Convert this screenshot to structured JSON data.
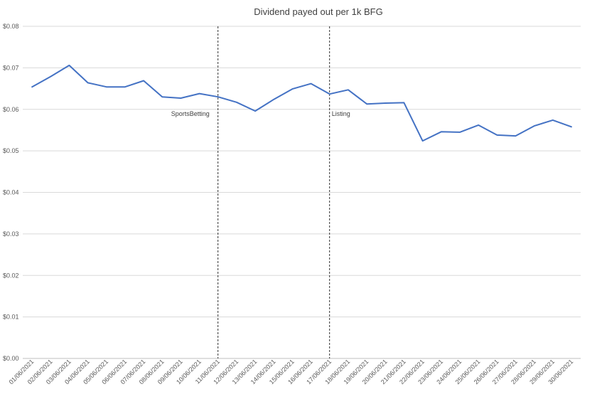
{
  "chart_data": {
    "type": "line",
    "title": "Dividend payed out per 1k BFG",
    "xlabel": "",
    "ylabel": "",
    "categories": [
      "01/06/2021",
      "02/06/2021",
      "03/06/2021",
      "04/06/2021",
      "05/06/2021",
      "06/06/2021",
      "07/06/2021",
      "08/06/2021",
      "09/06/2021",
      "10/06/2021",
      "11/06/2021",
      "12/06/2021",
      "13/06/2021",
      "14/06/2021",
      "15/06/2021",
      "16/06/2021",
      "17/06/2021",
      "18/06/2021",
      "19/06/2021",
      "20/06/2021",
      "21/06/2021",
      "22/06/2021",
      "23/06/2021",
      "24/06/2021",
      "25/06/2021",
      "26/06/2021",
      "27/06/2021",
      "28/06/2021",
      "29/06/2021",
      "30/06/2021"
    ],
    "series": [
      {
        "values": [
          0.0654,
          0.0679,
          0.0706,
          0.0664,
          0.0654,
          0.0654,
          0.0669,
          0.063,
          0.0627,
          0.0638,
          0.063,
          0.0617,
          0.0596,
          0.0624,
          0.0649,
          0.0662,
          0.0637,
          0.0647,
          0.0613,
          0.0615,
          0.0616,
          0.0524,
          0.0546,
          0.0545,
          0.0562,
          0.0538,
          0.0536,
          0.056,
          0.0574,
          0.0558
        ],
        "color": "#4472C4"
      }
    ],
    "ylim": [
      0,
      0.08
    ],
    "y_ticks": [
      "$0.00",
      "$0.01",
      "$0.02",
      "$0.03",
      "$0.04",
      "$0.05",
      "$0.06",
      "$0.07",
      "$0.08"
    ],
    "grid": true,
    "annotations": [
      {
        "text": "SportsBetting",
        "x": "11/06/2021",
        "style": "dashed-vertical-line",
        "label_position": "left"
      },
      {
        "text": "Listing",
        "x": "17/06/2021",
        "style": "dashed-vertical-line",
        "label_position": "right"
      }
    ]
  }
}
